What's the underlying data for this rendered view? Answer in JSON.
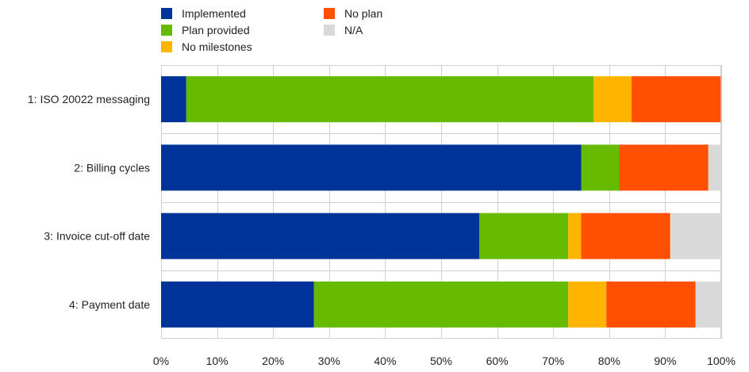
{
  "chart_data": {
    "type": "bar",
    "orientation": "horizontal",
    "stacked": true,
    "normalized": true,
    "categories": [
      "1: ISO 20022 messaging",
      "2: Billing cycles",
      "3: Invoice cut-off date",
      "4: Payment date"
    ],
    "series": [
      {
        "name": "Implemented",
        "color": "#003399",
        "values": [
          4.5,
          75.0,
          56.8,
          27.3
        ]
      },
      {
        "name": "Plan provided",
        "color": "#66bb00",
        "values": [
          72.7,
          6.8,
          15.9,
          45.4
        ]
      },
      {
        "name": "No milestones",
        "color": "#ffb400",
        "values": [
          6.8,
          0,
          2.3,
          6.8
        ]
      },
      {
        "name": "No plan",
        "color": "#ff4f00",
        "values": [
          15.9,
          15.9,
          15.9,
          15.9
        ]
      },
      {
        "name": "N/A",
        "color": "#d9d9d9",
        "values": [
          0,
          2.3,
          9.1,
          4.6
        ]
      }
    ],
    "xlim": [
      0,
      100
    ],
    "xticks": [
      "0%",
      "10%",
      "20%",
      "30%",
      "40%",
      "50%",
      "60%",
      "70%",
      "80%",
      "90%",
      "100%"
    ],
    "title": "",
    "xlabel": "",
    "ylabel": "",
    "grid": true,
    "legend_position": "top-left"
  }
}
